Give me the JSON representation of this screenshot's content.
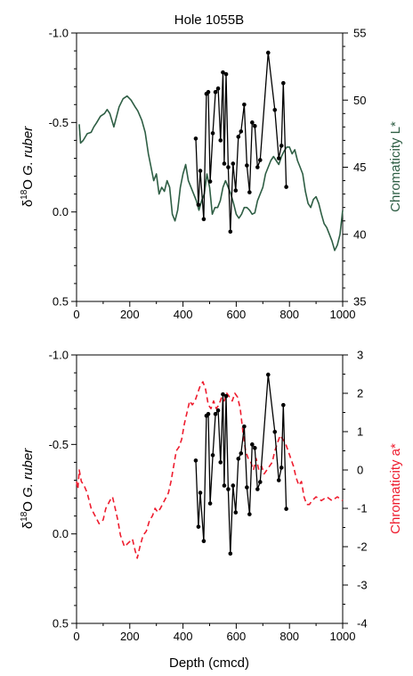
{
  "chart_data": [
    {
      "type": "line",
      "title": "Hole 1055B",
      "xlabel": "",
      "ylabel_left": "δ18O G. ruber",
      "ylabel_right": "Chromaticity L*",
      "xlim": [
        0,
        1000
      ],
      "ylim_left": [
        0.5,
        -1.0
      ],
      "ylim_right": [
        35,
        55
      ],
      "x_ticks": [
        "0",
        "200",
        "400",
        "600",
        "800",
        "1000"
      ],
      "y_left_ticks": [
        "-1.0",
        "-0.5",
        "0.0",
        "0.5"
      ],
      "y_right_ticks": [
        "55",
        "50",
        "45",
        "40",
        "35"
      ],
      "colors": {
        "left_series": "#000000",
        "right_series": "#2e5e44",
        "right_label": "#2e5e44"
      },
      "grid": false,
      "series": [
        {
          "axis": "right",
          "style": "solid",
          "x": [
            10,
            15,
            25,
            40,
            55,
            65,
            75,
            90,
            105,
            115,
            125,
            140,
            160,
            175,
            190,
            205,
            220,
            230,
            245,
            258,
            270,
            280,
            290,
            300,
            310,
            320,
            330,
            340,
            350,
            360,
            370,
            380,
            390,
            400,
            410,
            420,
            430,
            440,
            450,
            460,
            470,
            480,
            490,
            500,
            510,
            520,
            530,
            540,
            550,
            560,
            570,
            580,
            590,
            600,
            610,
            620,
            630,
            640,
            650,
            660,
            670,
            680,
            690,
            700,
            710,
            720,
            730,
            740,
            750,
            760,
            770,
            780,
            790,
            800,
            810,
            820,
            830,
            840,
            850,
            860,
            870,
            880,
            890,
            900,
            910,
            920,
            930,
            940,
            950,
            960,
            970,
            980,
            990,
            1000
          ],
          "y": [
            48.2,
            46.8,
            47.0,
            47.5,
            47.6,
            48.0,
            48.3,
            48.8,
            49.0,
            49.3,
            49.0,
            48.0,
            49.5,
            50.1,
            50.3,
            50.0,
            49.5,
            49.2,
            48.5,
            47.6,
            46.0,
            45.0,
            44.0,
            44.5,
            43.0,
            43.5,
            43.2,
            44.0,
            43.5,
            41.5,
            41.0,
            41.8,
            43.5,
            44.5,
            45.2,
            44.0,
            43.5,
            43.0,
            42.5,
            41.8,
            42.5,
            43.0,
            44.5,
            43.5,
            41.5,
            42.0,
            42.0,
            42.5,
            43.5,
            44.0,
            43.5,
            43.0,
            42.3,
            41.5,
            41.2,
            41.5,
            42.0,
            42.0,
            41.8,
            41.5,
            41.6,
            42.5,
            43.0,
            43.5,
            44.5,
            45.0,
            45.5,
            45.8,
            45.5,
            45.2,
            45.8,
            46.2,
            46.5,
            46.5,
            46.0,
            46.3,
            45.5,
            45.0,
            44.5,
            43.2,
            42.3,
            42.0,
            42.6,
            42.8,
            42.3,
            41.5,
            40.8,
            40.5,
            40.0,
            39.5,
            38.8,
            39.2,
            40.0,
            41.8
          ]
        },
        {
          "axis": "left",
          "style": "line-markers",
          "x": [
            448,
            458,
            465,
            478,
            488,
            495,
            502,
            512,
            522,
            532,
            541,
            550,
            555,
            562,
            570,
            578,
            588,
            598,
            608,
            618,
            630,
            640,
            650,
            660,
            670,
            680,
            690,
            720,
            745,
            760,
            770,
            777,
            788
          ],
          "y": [
            -0.41,
            -0.04,
            -0.23,
            0.04,
            -0.66,
            -0.67,
            -0.17,
            -0.44,
            -0.67,
            -0.69,
            -0.4,
            -0.78,
            -0.27,
            -0.77,
            -0.25,
            0.11,
            -0.27,
            -0.12,
            -0.42,
            -0.45,
            -0.6,
            -0.26,
            -0.11,
            -0.5,
            -0.48,
            -0.25,
            -0.29,
            -0.89,
            -0.57,
            -0.3,
            -0.37,
            -0.72,
            -0.14
          ]
        }
      ]
    },
    {
      "type": "line",
      "title": "",
      "xlabel": "Depth (cmcd)",
      "ylabel_left": "δ18O G. ruber",
      "ylabel_right": "Chromaticity a*",
      "xlim": [
        0,
        1000
      ],
      "ylim_left": [
        0.5,
        -1.0
      ],
      "ylim_right": [
        -4,
        3
      ],
      "x_ticks": [
        "0",
        "200",
        "400",
        "600",
        "800",
        "1000"
      ],
      "y_left_ticks": [
        "-1.0",
        "-0.5",
        "0.0",
        "0.5"
      ],
      "y_right_ticks": [
        "3",
        "2",
        "1",
        "0",
        "-1",
        "-2",
        "-3",
        "-4"
      ],
      "colors": {
        "left_series": "#000000",
        "right_series": "#ee1c2e",
        "right_label": "#ee1c2e"
      },
      "grid": false,
      "series": [
        {
          "axis": "right",
          "style": "dashed",
          "x": [
            0,
            5,
            10,
            18,
            28,
            40,
            55,
            70,
            85,
            100,
            110,
            118,
            125,
            135,
            145,
            155,
            165,
            180,
            195,
            210,
            220,
            228,
            238,
            250,
            262,
            275,
            285,
            295,
            305,
            315,
            330,
            345,
            355,
            365,
            375,
            385,
            395,
            405,
            415,
            425,
            435,
            445,
            455,
            465,
            475,
            485,
            495,
            505,
            515,
            525,
            535,
            545,
            555,
            565,
            575,
            585,
            595,
            605,
            615,
            625,
            635,
            645,
            655,
            665,
            675,
            685,
            695,
            705,
            715,
            725,
            735,
            745,
            755,
            765,
            775,
            785,
            795,
            805,
            815,
            825,
            835,
            845,
            855,
            865,
            875,
            885,
            900,
            920,
            940,
            960,
            980,
            1000
          ],
          "y": [
            -0.3,
            -0.5,
            0.0,
            -0.3,
            -0.4,
            -0.6,
            -1.0,
            -1.2,
            -1.4,
            -1.3,
            -1.0,
            -0.9,
            -0.8,
            -0.7,
            -1.0,
            -1.3,
            -1.7,
            -2.0,
            -1.9,
            -1.8,
            -2.1,
            -2.3,
            -2.0,
            -1.7,
            -1.6,
            -1.3,
            -1.2,
            -1.0,
            -1.1,
            -1.0,
            -0.8,
            -0.6,
            -0.3,
            0.1,
            0.5,
            0.6,
            0.8,
            1.2,
            1.5,
            1.8,
            1.7,
            1.8,
            2.0,
            2.2,
            2.3,
            2.1,
            1.7,
            1.6,
            1.8,
            1.6,
            1.7,
            1.9,
            1.8,
            2.0,
            1.9,
            1.8,
            2.0,
            1.9,
            1.6,
            1.0,
            0.5,
            0.3,
            0.2,
            0.0,
            0.3,
            0.0,
            0.1,
            -0.1,
            0.0,
            0.1,
            0.2,
            0.5,
            0.7,
            0.9,
            0.8,
            0.7,
            0.5,
            0.3,
            0.1,
            -0.2,
            -0.4,
            -0.3,
            -0.7,
            -0.9,
            -0.9,
            -0.8,
            -0.7,
            -0.8,
            -0.7,
            -0.8,
            -0.7,
            -0.8
          ]
        },
        {
          "axis": "left",
          "style": "line-markers",
          "x": [
            448,
            458,
            465,
            478,
            488,
            495,
            502,
            512,
            522,
            532,
            541,
            550,
            555,
            562,
            570,
            578,
            588,
            598,
            608,
            618,
            630,
            640,
            650,
            660,
            670,
            680,
            690,
            720,
            745,
            760,
            770,
            777,
            788
          ],
          "y": [
            -0.41,
            -0.04,
            -0.23,
            0.04,
            -0.66,
            -0.67,
            -0.17,
            -0.44,
            -0.67,
            -0.69,
            -0.4,
            -0.78,
            -0.27,
            -0.77,
            -0.25,
            0.11,
            -0.27,
            -0.12,
            -0.42,
            -0.45,
            -0.6,
            -0.26,
            -0.11,
            -0.5,
            -0.48,
            -0.25,
            -0.29,
            -0.89,
            -0.57,
            -0.3,
            -0.37,
            -0.72,
            -0.14
          ]
        }
      ]
    }
  ]
}
